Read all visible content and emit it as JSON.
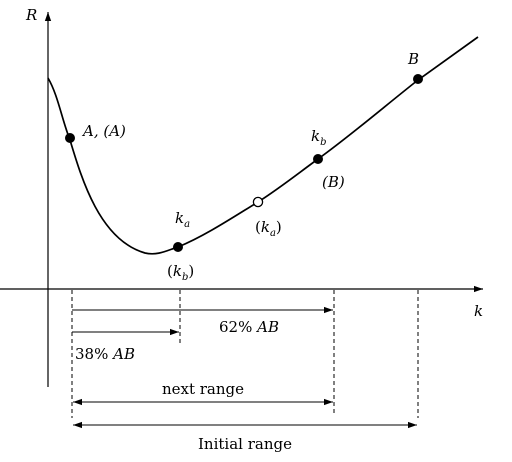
{
  "axes": {
    "y_label": "R",
    "x_label": "k"
  },
  "points": {
    "A": {
      "label": "A, (A)"
    },
    "ka": {
      "main": "k",
      "sub": "a"
    },
    "kb_paren": {
      "open": "(",
      "main": "k",
      "sub": "b",
      "close": ")"
    },
    "ka_paren": {
      "open": "(",
      "main": "k",
      "sub": "a",
      "close": ")"
    },
    "kb": {
      "main": "k",
      "sub": "b"
    },
    "B_paren": {
      "label": "(B)"
    },
    "B": {
      "label": "B"
    }
  },
  "dimensions": {
    "pct62": {
      "num": "62% ",
      "ab": "AB"
    },
    "pct38": {
      "num": "38% ",
      "ab": "AB"
    },
    "next_range": "next range",
    "initial_range": "Initial range"
  }
}
